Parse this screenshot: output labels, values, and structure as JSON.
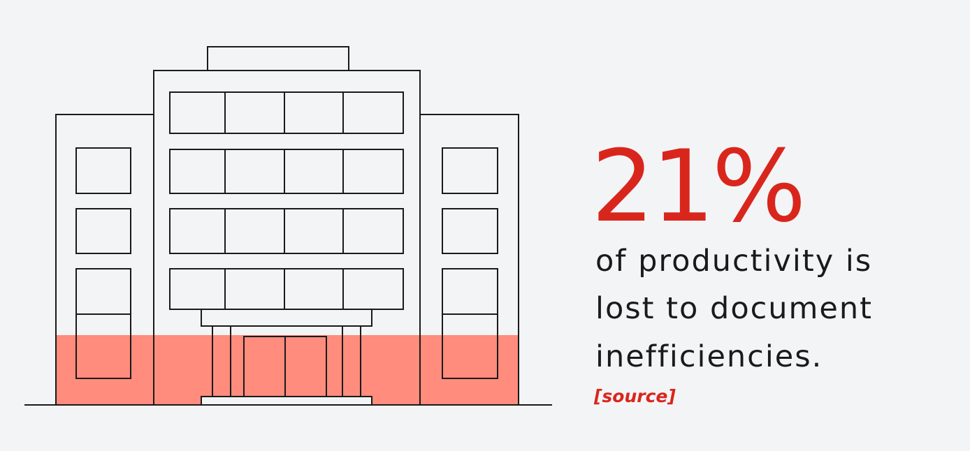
{
  "stat": "21%",
  "description_lines": [
    "of productivity is",
    "lost to document",
    "inefficiencies."
  ],
  "source": "[source]"
}
